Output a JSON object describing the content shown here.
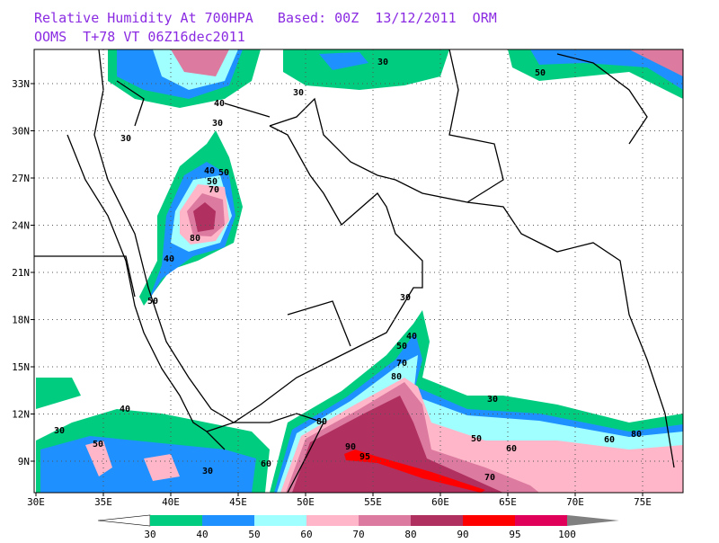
{
  "header": {
    "title": "Relative Humidity At 700HPA   Based: 00Z  13/12/2011  ORM",
    "subtitle": "OOMS  T+78 VT 06Z16dec2011"
  },
  "map": {
    "lat_labels": [
      "9N",
      "12N",
      "15N",
      "18N",
      "21N",
      "24N",
      "27N",
      "30N",
      "33N"
    ],
    "lon_labels": [
      "30E",
      "35E",
      "40E",
      "45E",
      "50E",
      "55E",
      "60E",
      "65E",
      "70E",
      "75E"
    ],
    "contour_labels": [
      "30",
      "30",
      "30",
      "30",
      "40",
      "40",
      "50",
      "50",
      "70",
      "80",
      "40",
      "50",
      "30",
      "40",
      "50",
      "80",
      "70",
      "30",
      "30",
      "40",
      "50",
      "60",
      "80",
      "90",
      "95",
      "70",
      "50",
      "60",
      "80",
      "30",
      "50",
      "60"
    ]
  },
  "colorbar": {
    "labels": [
      "30",
      "40",
      "50",
      "60",
      "70",
      "80",
      "90",
      "95",
      "100"
    ],
    "colors": [
      "#ffffff",
      "#00cc80",
      "#1e90ff",
      "#a0ffff",
      "#ffb6c8",
      "#dc7aa0",
      "#b03060",
      "#ff0000",
      "#e0005a",
      "#808080"
    ]
  }
}
